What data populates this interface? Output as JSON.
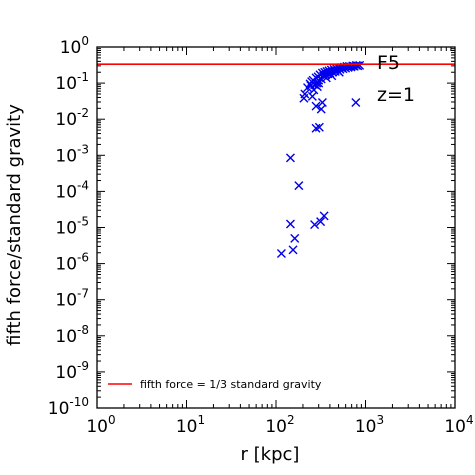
{
  "chart_data": {
    "type": "scatter",
    "xlabel": "r [kpc]",
    "ylabel": "fifth force/standard gravity",
    "x_scale": "log",
    "y_scale": "log",
    "xlim": [
      1,
      10000
    ],
    "ylim": [
      1e-10,
      1
    ],
    "x_ticks": [
      {
        "value": 1,
        "base": "10",
        "exp": "0"
      },
      {
        "value": 10,
        "base": "10",
        "exp": "1"
      },
      {
        "value": 100,
        "base": "10",
        "exp": "2"
      },
      {
        "value": 1000,
        "base": "10",
        "exp": "3"
      },
      {
        "value": 10000,
        "base": "10",
        "exp": "4"
      }
    ],
    "y_ticks": [
      {
        "value": 1e-10,
        "base": "10",
        "exp": "-10"
      },
      {
        "value": 1e-09,
        "base": "10",
        "exp": "-9"
      },
      {
        "value": 1e-08,
        "base": "10",
        "exp": "-8"
      },
      {
        "value": 1e-07,
        "base": "10",
        "exp": "-7"
      },
      {
        "value": 1e-06,
        "base": "10",
        "exp": "-6"
      },
      {
        "value": 1e-05,
        "base": "10",
        "exp": "-5"
      },
      {
        "value": 0.0001,
        "base": "10",
        "exp": "-4"
      },
      {
        "value": 0.001,
        "base": "10",
        "exp": "-3"
      },
      {
        "value": 0.01,
        "base": "10",
        "exp": "-2"
      },
      {
        "value": 0.1,
        "base": "10",
        "exp": "-1"
      },
      {
        "value": 1,
        "base": "10",
        "exp": "0"
      }
    ],
    "annotations": [
      "F5",
      "z=1"
    ],
    "reference_line": {
      "name": "fifth force = 1/3 standard gravity",
      "y": 0.3333,
      "color": "#ff0000"
    },
    "legend_position": "bottom-left",
    "marker_color": "#0000ee",
    "grid": false,
    "points": [
      [
        115,
        1.9e-06
      ],
      [
        155,
        2.4e-06
      ],
      [
        162,
        5e-06
      ],
      [
        145,
        1.25e-05
      ],
      [
        270,
        1.2e-05
      ],
      [
        315,
        1.45e-05
      ],
      [
        345,
        2.1e-05
      ],
      [
        180,
        0.000145
      ],
      [
        145,
        0.00085
      ],
      [
        280,
        0.0056
      ],
      [
        305,
        0.006
      ],
      [
        320,
        0.019
      ],
      [
        330,
        0.029
      ],
      [
        280,
        0.023
      ],
      [
        255,
        0.043
      ],
      [
        780,
        0.029
      ],
      [
        205,
        0.038
      ],
      [
        210,
        0.05
      ],
      [
        225,
        0.075
      ],
      [
        240,
        0.095
      ],
      [
        250,
        0.11
      ],
      [
        260,
        0.12
      ],
      [
        270,
        0.09
      ],
      [
        280,
        0.14
      ],
      [
        285,
        0.1
      ],
      [
        295,
        0.15
      ],
      [
        300,
        0.12
      ],
      [
        310,
        0.17
      ],
      [
        320,
        0.13
      ],
      [
        330,
        0.19
      ],
      [
        340,
        0.16
      ],
      [
        350,
        0.2
      ],
      [
        360,
        0.17
      ],
      [
        370,
        0.21
      ],
      [
        380,
        0.18
      ],
      [
        390,
        0.22
      ],
      [
        400,
        0.19
      ],
      [
        415,
        0.23
      ],
      [
        430,
        0.2
      ],
      [
        445,
        0.24
      ],
      [
        460,
        0.21
      ],
      [
        475,
        0.25
      ],
      [
        490,
        0.22
      ],
      [
        505,
        0.26
      ],
      [
        520,
        0.24
      ],
      [
        540,
        0.27
      ],
      [
        560,
        0.25
      ],
      [
        580,
        0.28
      ],
      [
        600,
        0.26
      ],
      [
        620,
        0.29
      ],
      [
        640,
        0.27
      ],
      [
        660,
        0.29
      ],
      [
        690,
        0.28
      ],
      [
        720,
        0.3
      ],
      [
        750,
        0.29
      ],
      [
        790,
        0.31
      ],
      [
        820,
        0.3
      ],
      [
        860,
        0.31
      ],
      [
        300,
        0.1
      ],
      [
        265,
        0.065
      ],
      [
        290,
        0.08
      ],
      [
        245,
        0.085
      ],
      [
        365,
        0.14
      ],
      [
        420,
        0.16
      ],
      [
        510,
        0.2
      ]
    ]
  }
}
